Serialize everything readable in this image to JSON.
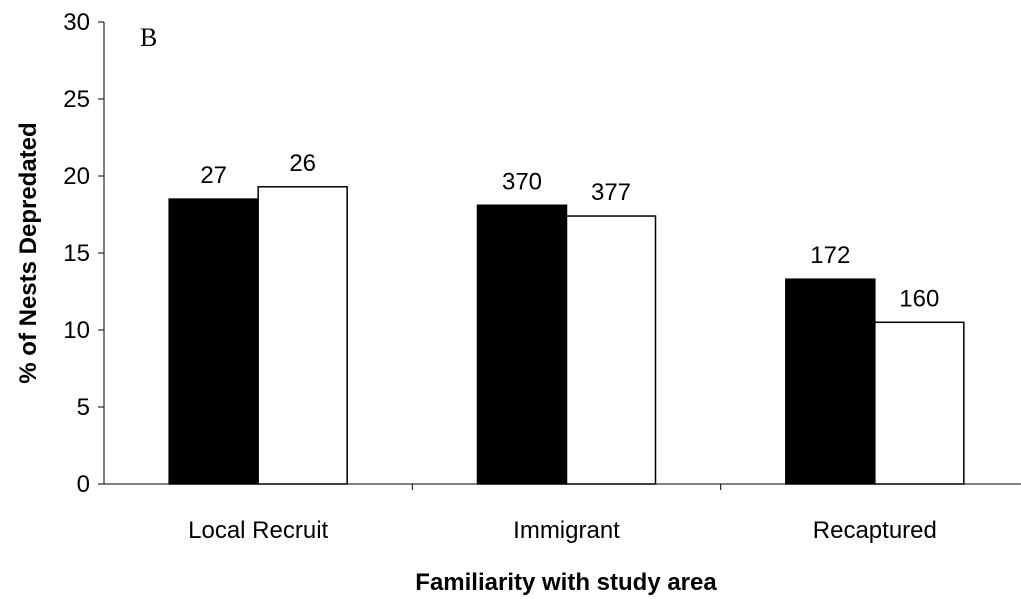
{
  "chart_data": {
    "type": "bar",
    "panel_label": "B",
    "categories": [
      "Local Recruit",
      "Immigrant",
      "Recaptured"
    ],
    "series": [
      {
        "color": "#000000",
        "values": [
          18.5,
          18.1,
          13.3
        ],
        "labels": [
          "27",
          "370",
          "172"
        ]
      },
      {
        "color": "#ffffff",
        "values": [
          19.3,
          17.4,
          10.5
        ],
        "labels": [
          "26",
          "377",
          "160"
        ]
      }
    ],
    "xlabel": "Familiarity with study area",
    "ylabel": "% of Nests Depredated",
    "ylim": [
      0,
      30
    ],
    "yticks": [
      0,
      5,
      10,
      15,
      20,
      25,
      30
    ],
    "grid": false,
    "legend": "none"
  }
}
